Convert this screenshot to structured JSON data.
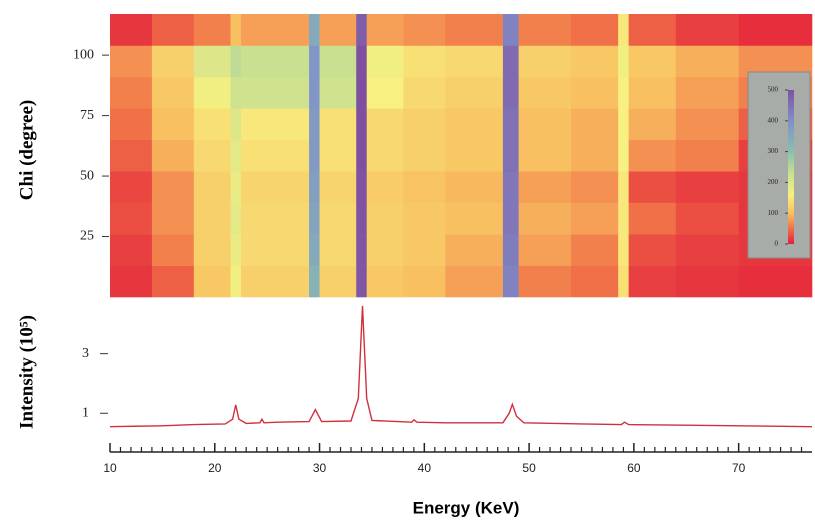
{
  "chart_data": [
    {
      "type": "heatmap",
      "ylabel": "Chi (degree)",
      "x_edges": [
        10,
        14,
        18,
        21.5,
        22.5,
        29,
        30,
        33.5,
        34.5,
        38,
        42,
        47.5,
        49,
        54,
        58.5,
        59.5,
        64,
        70,
        77
      ],
      "y_edges": [
        0,
        13,
        26,
        39,
        52,
        65,
        78,
        91,
        104,
        117
      ],
      "z": [
        [
          15,
          40,
          110,
          170,
          120,
          330,
          120,
          490,
          110,
          100,
          80,
          420,
          60,
          50,
          140,
          20,
          15,
          10
        ],
        [
          20,
          60,
          120,
          180,
          130,
          350,
          130,
          490,
          120,
          110,
          90,
          430,
          80,
          60,
          150,
          30,
          20,
          15
        ],
        [
          30,
          70,
          120,
          190,
          130,
          360,
          130,
          495,
          120,
          110,
          100,
          440,
          90,
          80,
          150,
          50,
          30,
          15
        ],
        [
          25,
          70,
          120,
          180,
          125,
          370,
          125,
          495,
          115,
          105,
          95,
          440,
          80,
          70,
          150,
          30,
          20,
          15
        ],
        [
          40,
          90,
          130,
          190,
          140,
          380,
          140,
          500,
          130,
          120,
          110,
          450,
          100,
          90,
          160,
          70,
          60,
          20
        ],
        [
          50,
          100,
          140,
          200,
          150,
          380,
          140,
          500,
          130,
          120,
          110,
          450,
          100,
          90,
          160,
          90,
          70,
          40
        ],
        [
          60,
          110,
          170,
          220,
          220,
          390,
          220,
          500,
          160,
          130,
          120,
          460,
          110,
          100,
          160,
          100,
          80,
          60
        ],
        [
          70,
          120,
          200,
          240,
          230,
          390,
          230,
          500,
          170,
          140,
          130,
          460,
          120,
          110,
          170,
          110,
          90,
          70
        ],
        [
          15,
          40,
          60,
          100,
          80,
          350,
          80,
          480,
          80,
          70,
          60,
          420,
          60,
          50,
          150,
          40,
          20,
          10
        ]
      ],
      "xlim": [
        10,
        77
      ],
      "ylim": [
        0,
        117
      ],
      "yticks": [
        25,
        50,
        75,
        100
      ],
      "clim": [
        0,
        500
      ],
      "cticks": [
        0,
        100,
        200,
        300,
        400,
        500
      ],
      "colorscale": [
        {
          "value": 0,
          "color": "#e31e3a"
        },
        {
          "value": 50,
          "color": "#f07048"
        },
        {
          "value": 100,
          "color": "#f8c060"
        },
        {
          "value": 160,
          "color": "#f8f080"
        },
        {
          "value": 230,
          "color": "#c8e090"
        },
        {
          "value": 300,
          "color": "#88c0b0"
        },
        {
          "value": 400,
          "color": "#8090c8"
        },
        {
          "value": 500,
          "color": "#8050a0"
        }
      ]
    },
    {
      "type": "line",
      "ylabel": "Intensity (10⁵)",
      "xlabel": "Energy (KeV)",
      "color": "#d0303c",
      "x": [
        10,
        15,
        18,
        21,
        21.7,
        22,
        22.3,
        23,
        24.3,
        24.5,
        24.7,
        26,
        29,
        29.6,
        30.2,
        33,
        33.7,
        34.1,
        34.5,
        35,
        38.8,
        39,
        39.3,
        42,
        47.5,
        48.1,
        48.4,
        48.8,
        49.5,
        55,
        58.8,
        59.1,
        59.5,
        65,
        70,
        77
      ],
      "values": [
        0.55,
        0.58,
        0.62,
        0.64,
        0.8,
        1.28,
        0.8,
        0.66,
        0.68,
        0.8,
        0.68,
        0.7,
        0.72,
        1.12,
        0.72,
        0.74,
        1.5,
        4.6,
        1.5,
        0.76,
        0.7,
        0.78,
        0.7,
        0.68,
        0.68,
        1.0,
        1.3,
        0.9,
        0.68,
        0.64,
        0.62,
        0.7,
        0.62,
        0.6,
        0.58,
        0.55
      ],
      "xlim": [
        10,
        77
      ],
      "ylim": [
        -0.3,
        4.8
      ],
      "yticks": [
        1,
        3
      ],
      "xticks": [
        10,
        20,
        30,
        40,
        50,
        60,
        70
      ],
      "xminor_ticks": [
        11,
        12,
        13,
        14,
        15,
        16,
        17,
        18,
        19,
        21,
        22,
        23,
        24,
        25,
        26,
        27,
        28,
        29,
        31,
        32,
        33,
        34,
        35,
        36,
        37,
        38,
        39,
        41,
        42,
        43,
        44,
        45,
        46,
        47,
        48,
        49,
        51,
        52,
        53,
        54,
        55,
        56,
        57,
        58,
        59,
        61,
        62,
        63,
        64,
        65,
        66,
        67,
        68,
        69,
        71,
        72,
        73,
        74,
        75,
        76
      ]
    }
  ]
}
